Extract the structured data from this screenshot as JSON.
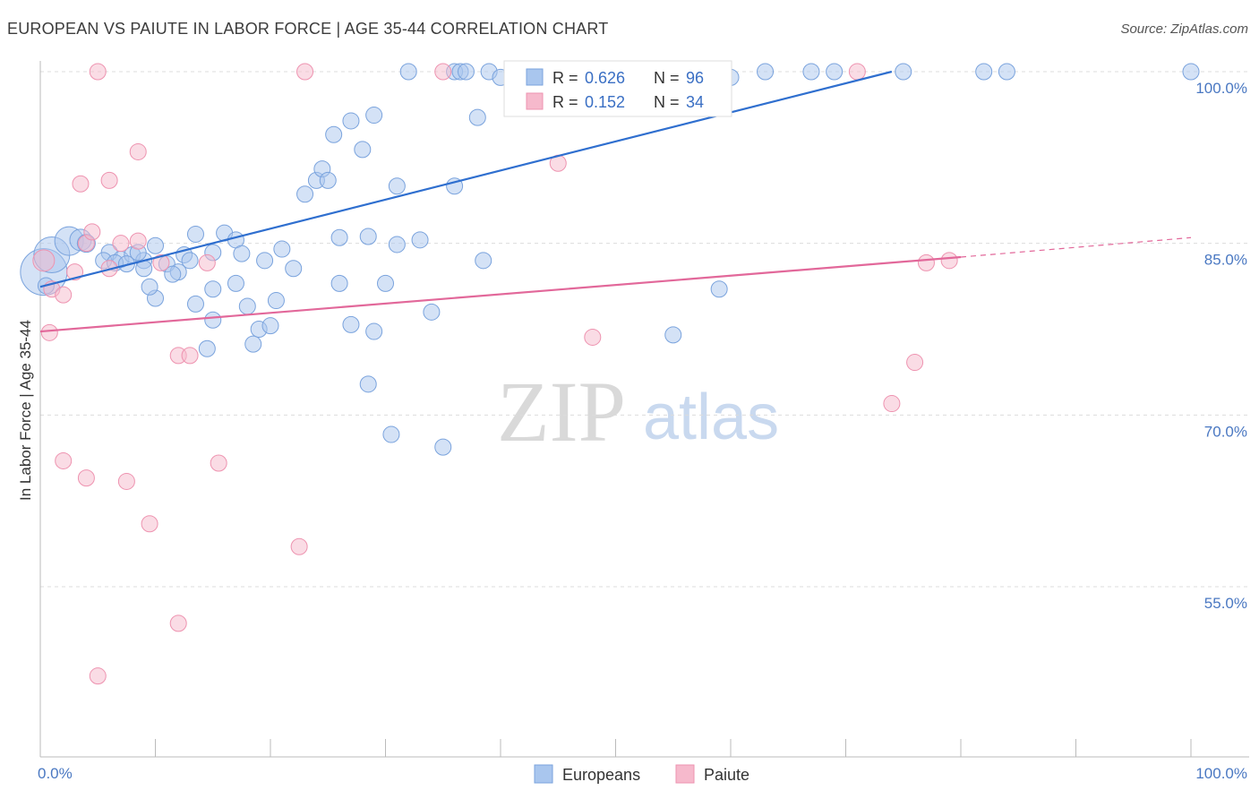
{
  "page": {
    "title": "EUROPEAN VS PAIUTE IN LABOR FORCE | AGE 35-44 CORRELATION CHART",
    "source": "Source: ZipAtlas.com"
  },
  "watermark": {
    "zip": "ZIP",
    "atlas": "atlas"
  },
  "legend_box": {
    "rows": [
      {
        "r_label": "R =",
        "r_value": "0.626",
        "n_label": "N =",
        "n_value": "96"
      },
      {
        "r_label": "R =",
        "r_value": "0.152",
        "n_label": "N =",
        "n_value": "34"
      }
    ]
  },
  "colors": {
    "blue_fill": "#a9c6ee",
    "blue_stroke": "#7aa3dd",
    "blue_line": "#2f6fcf",
    "pink_fill": "#f6b9cc",
    "pink_stroke": "#ee93b0",
    "pink_line": "#e2689a",
    "grid": "#dcdcdc",
    "tick_text": "#4a78c2"
  },
  "chart_data": {
    "type": "scatter",
    "title": "EUROPEAN VS PAIUTE IN LABOR FORCE | AGE 35-44 CORRELATION CHART",
    "xlabel": "",
    "ylabel": "In Labor Force | Age 35-44",
    "xlim": [
      0,
      100
    ],
    "ylim": [
      40,
      102
    ],
    "x_tick_labels": [
      "0.0%",
      "100.0%"
    ],
    "y_ticks": [
      55,
      70,
      85,
      100
    ],
    "y_tick_labels": [
      "55.0%",
      "70.0%",
      "85.0%",
      "100.0%"
    ],
    "legend": [
      "Europeans",
      "Paiute"
    ],
    "series": [
      {
        "name": "Europeans",
        "r": 0.626,
        "n": 96,
        "trend": {
          "x": [
            0,
            74
          ],
          "y": [
            81.2,
            100.0
          ]
        },
        "points": [
          {
            "x": 0.3,
            "y": 82.5,
            "s": 26
          },
          {
            "x": 1.0,
            "y": 84.0,
            "s": 20
          },
          {
            "x": 2.5,
            "y": 85.2,
            "s": 16
          },
          {
            "x": 3.5,
            "y": 85.3,
            "s": 12
          },
          {
            "x": 4.0,
            "y": 85.0,
            "s": 10
          },
          {
            "x": 6.0,
            "y": 84.2,
            "s": 9
          },
          {
            "x": 5.5,
            "y": 83.5,
            "s": 9
          },
          {
            "x": 7.0,
            "y": 83.6,
            "s": 9
          },
          {
            "x": 8.0,
            "y": 84.0,
            "s": 9
          },
          {
            "x": 9.0,
            "y": 83.5,
            "s": 9
          },
          {
            "x": 6.5,
            "y": 83.3,
            "s": 9
          },
          {
            "x": 7.5,
            "y": 83.2,
            "s": 9
          },
          {
            "x": 8.5,
            "y": 84.2,
            "s": 9
          },
          {
            "x": 9.0,
            "y": 82.8,
            "s": 9
          },
          {
            "x": 10.0,
            "y": 84.8,
            "s": 9
          },
          {
            "x": 11.0,
            "y": 83.2,
            "s": 9
          },
          {
            "x": 12.0,
            "y": 82.5,
            "s": 9
          },
          {
            "x": 12.5,
            "y": 84.0,
            "s": 9
          },
          {
            "x": 13.0,
            "y": 83.5,
            "s": 9
          },
          {
            "x": 13.5,
            "y": 85.8,
            "s": 9
          },
          {
            "x": 15.0,
            "y": 84.2,
            "s": 9
          },
          {
            "x": 16.0,
            "y": 85.9,
            "s": 9
          },
          {
            "x": 17.0,
            "y": 85.3,
            "s": 9
          },
          {
            "x": 17.5,
            "y": 84.1,
            "s": 9
          },
          {
            "x": 19.5,
            "y": 83.5,
            "s": 9
          },
          {
            "x": 21.0,
            "y": 84.5,
            "s": 9
          },
          {
            "x": 22.0,
            "y": 82.8,
            "s": 9
          },
          {
            "x": 23.0,
            "y": 89.3,
            "s": 9
          },
          {
            "x": 24.0,
            "y": 90.5,
            "s": 9
          },
          {
            "x": 24.5,
            "y": 91.5,
            "s": 9
          },
          {
            "x": 25.0,
            "y": 90.5,
            "s": 9
          },
          {
            "x": 25.5,
            "y": 94.5,
            "s": 9
          },
          {
            "x": 27.0,
            "y": 95.7,
            "s": 9
          },
          {
            "x": 28.0,
            "y": 93.2,
            "s": 9
          },
          {
            "x": 29.0,
            "y": 96.2,
            "s": 9
          },
          {
            "x": 26.0,
            "y": 85.5,
            "s": 9
          },
          {
            "x": 28.5,
            "y": 85.6,
            "s": 9
          },
          {
            "x": 31.0,
            "y": 84.9,
            "s": 9
          },
          {
            "x": 33.0,
            "y": 85.3,
            "s": 9
          },
          {
            "x": 31.0,
            "y": 90.0,
            "s": 9
          },
          {
            "x": 36.0,
            "y": 90.0,
            "s": 9
          },
          {
            "x": 38.0,
            "y": 96.0,
            "s": 9
          },
          {
            "x": 10.0,
            "y": 80.2,
            "s": 9
          },
          {
            "x": 9.5,
            "y": 81.2,
            "s": 9
          },
          {
            "x": 11.5,
            "y": 82.3,
            "s": 9
          },
          {
            "x": 13.5,
            "y": 79.7,
            "s": 9
          },
          {
            "x": 15.0,
            "y": 81.0,
            "s": 9
          },
          {
            "x": 17.0,
            "y": 81.5,
            "s": 9
          },
          {
            "x": 18.0,
            "y": 79.5,
            "s": 9
          },
          {
            "x": 20.5,
            "y": 80.0,
            "s": 9
          },
          {
            "x": 26.0,
            "y": 81.5,
            "s": 9
          },
          {
            "x": 30.0,
            "y": 81.5,
            "s": 9
          },
          {
            "x": 34.0,
            "y": 79.0,
            "s": 9
          },
          {
            "x": 38.5,
            "y": 83.5,
            "s": 9
          },
          {
            "x": 59.0,
            "y": 81.0,
            "s": 9
          },
          {
            "x": 15.0,
            "y": 78.3,
            "s": 9
          },
          {
            "x": 19.0,
            "y": 77.5,
            "s": 9
          },
          {
            "x": 20.0,
            "y": 77.8,
            "s": 9
          },
          {
            "x": 27.0,
            "y": 77.9,
            "s": 9
          },
          {
            "x": 29.0,
            "y": 77.3,
            "s": 9
          },
          {
            "x": 18.5,
            "y": 76.2,
            "s": 9
          },
          {
            "x": 14.5,
            "y": 75.8,
            "s": 9
          },
          {
            "x": 55.0,
            "y": 77.0,
            "s": 9
          },
          {
            "x": 28.5,
            "y": 72.7,
            "s": 9
          },
          {
            "x": 30.5,
            "y": 68.3,
            "s": 9
          },
          {
            "x": 35.0,
            "y": 67.2,
            "s": 9
          },
          {
            "x": 0.5,
            "y": 81.3,
            "s": 9
          },
          {
            "x": 32.0,
            "y": 100.0,
            "s": 9
          },
          {
            "x": 36.0,
            "y": 100.0,
            "s": 9
          },
          {
            "x": 36.5,
            "y": 100.0,
            "s": 9
          },
          {
            "x": 37.0,
            "y": 100.0,
            "s": 9
          },
          {
            "x": 39.0,
            "y": 100.0,
            "s": 9
          },
          {
            "x": 40.0,
            "y": 99.5,
            "s": 9
          },
          {
            "x": 41.0,
            "y": 100.0,
            "s": 9
          },
          {
            "x": 42.0,
            "y": 100.0,
            "s": 9
          },
          {
            "x": 45.0,
            "y": 100.0,
            "s": 9
          },
          {
            "x": 47.0,
            "y": 100.0,
            "s": 9
          },
          {
            "x": 49.0,
            "y": 99.5,
            "s": 9
          },
          {
            "x": 51.0,
            "y": 100.0,
            "s": 9
          },
          {
            "x": 52.5,
            "y": 100.0,
            "s": 9
          },
          {
            "x": 60.0,
            "y": 99.5,
            "s": 9
          },
          {
            "x": 63.0,
            "y": 100.0,
            "s": 9
          },
          {
            "x": 67.0,
            "y": 100.0,
            "s": 9
          },
          {
            "x": 69.0,
            "y": 100.0,
            "s": 9
          },
          {
            "x": 75.0,
            "y": 100.0,
            "s": 9
          },
          {
            "x": 82.0,
            "y": 100.0,
            "s": 9
          },
          {
            "x": 84.0,
            "y": 100.0,
            "s": 9
          },
          {
            "x": 100.0,
            "y": 100.0,
            "s": 9
          }
        ]
      },
      {
        "name": "Paiute",
        "r": 0.152,
        "n": 34,
        "trend": {
          "x": [
            0,
            80
          ],
          "y": [
            77.3,
            83.8
          ]
        },
        "trend_dashed": {
          "x": [
            80,
            100
          ],
          "y": [
            83.8,
            85.5
          ]
        },
        "points": [
          {
            "x": 0.3,
            "y": 83.5,
            "s": 12
          },
          {
            "x": 1.0,
            "y": 81.0,
            "s": 9
          },
          {
            "x": 2.0,
            "y": 80.5,
            "s": 9
          },
          {
            "x": 3.0,
            "y": 82.5,
            "s": 9
          },
          {
            "x": 4.0,
            "y": 85.0,
            "s": 9
          },
          {
            "x": 4.5,
            "y": 86.0,
            "s": 9
          },
          {
            "x": 6.0,
            "y": 82.8,
            "s": 9
          },
          {
            "x": 7.0,
            "y": 85.0,
            "s": 9
          },
          {
            "x": 8.5,
            "y": 85.2,
            "s": 9
          },
          {
            "x": 10.5,
            "y": 83.3,
            "s": 9
          },
          {
            "x": 14.5,
            "y": 83.3,
            "s": 9
          },
          {
            "x": 0.8,
            "y": 77.2,
            "s": 9
          },
          {
            "x": 3.5,
            "y": 90.2,
            "s": 9
          },
          {
            "x": 6.0,
            "y": 90.5,
            "s": 9
          },
          {
            "x": 8.5,
            "y": 93.0,
            "s": 9
          },
          {
            "x": 5.0,
            "y": 100.0,
            "s": 9
          },
          {
            "x": 23.0,
            "y": 100.0,
            "s": 9
          },
          {
            "x": 35.0,
            "y": 100.0,
            "s": 9
          },
          {
            "x": 71.0,
            "y": 100.0,
            "s": 9
          },
          {
            "x": 45.0,
            "y": 92.0,
            "s": 9
          },
          {
            "x": 48.0,
            "y": 76.8,
            "s": 9
          },
          {
            "x": 12.0,
            "y": 75.2,
            "s": 9
          },
          {
            "x": 13.0,
            "y": 75.2,
            "s": 9
          },
          {
            "x": 76.0,
            "y": 74.6,
            "s": 9
          },
          {
            "x": 74.0,
            "y": 71.0,
            "s": 9
          },
          {
            "x": 77.0,
            "y": 83.3,
            "s": 9
          },
          {
            "x": 79.0,
            "y": 83.5,
            "s": 9
          },
          {
            "x": 2.0,
            "y": 66.0,
            "s": 9
          },
          {
            "x": 4.0,
            "y": 64.5,
            "s": 9
          },
          {
            "x": 7.5,
            "y": 64.2,
            "s": 9
          },
          {
            "x": 15.5,
            "y": 65.8,
            "s": 9
          },
          {
            "x": 9.5,
            "y": 60.5,
            "s": 9
          },
          {
            "x": 22.5,
            "y": 58.5,
            "s": 9
          },
          {
            "x": 12.0,
            "y": 51.8,
            "s": 9
          },
          {
            "x": 5.0,
            "y": 47.2,
            "s": 9
          }
        ]
      }
    ]
  }
}
